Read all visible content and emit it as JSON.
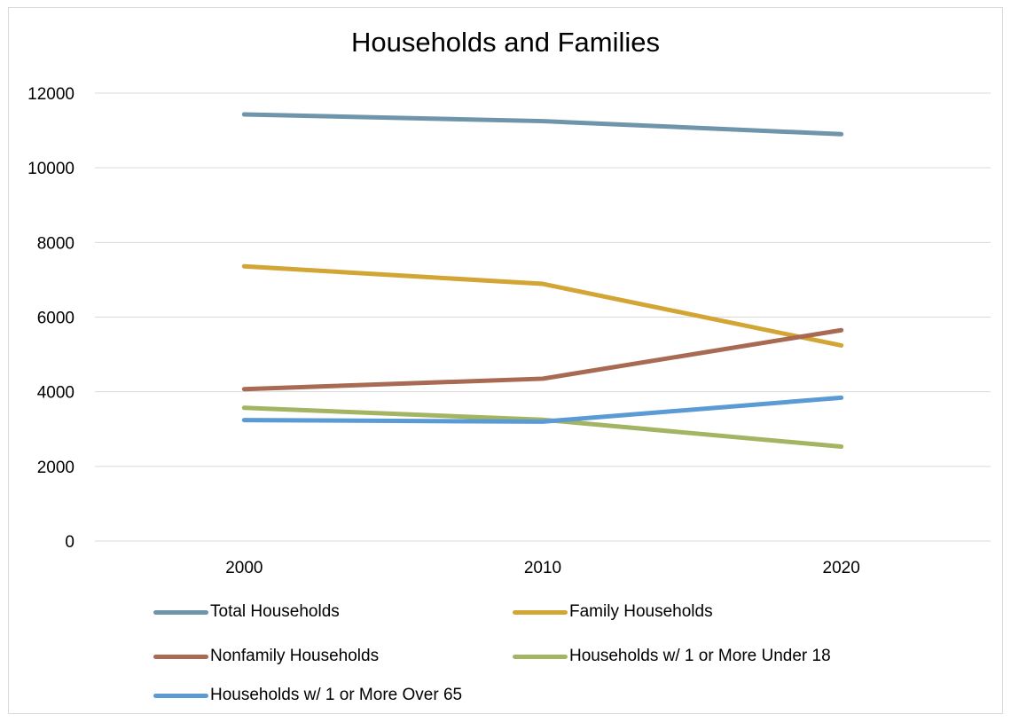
{
  "chart_data": {
    "type": "line",
    "title": "Households and Families",
    "xlabel": "",
    "ylabel": "",
    "categories": [
      "2000",
      "2010",
      "2020"
    ],
    "ylim": [
      0,
      12000
    ],
    "yticks": [
      "0",
      "2000",
      "4000",
      "6000",
      "8000",
      "10000",
      "12000"
    ],
    "grid": true,
    "legend_position": "bottom",
    "series": [
      {
        "name": "Total Households",
        "color": "#6f95ab",
        "values": [
          11430,
          11250,
          10900
        ]
      },
      {
        "name": "Family Households",
        "color": "#d2a535",
        "values": [
          7360,
          6890,
          5240
        ]
      },
      {
        "name": "Nonfamily Households",
        "color": "#a86a53",
        "values": [
          4070,
          4350,
          5650
        ]
      },
      {
        "name": "Households w/ 1 or More Under 18",
        "color": "#a3b562",
        "values": [
          3570,
          3250,
          2530
        ]
      },
      {
        "name": "Households w/ 1 or More Over 65",
        "color": "#5b9bd5",
        "values": [
          3240,
          3200,
          3840
        ]
      }
    ]
  }
}
